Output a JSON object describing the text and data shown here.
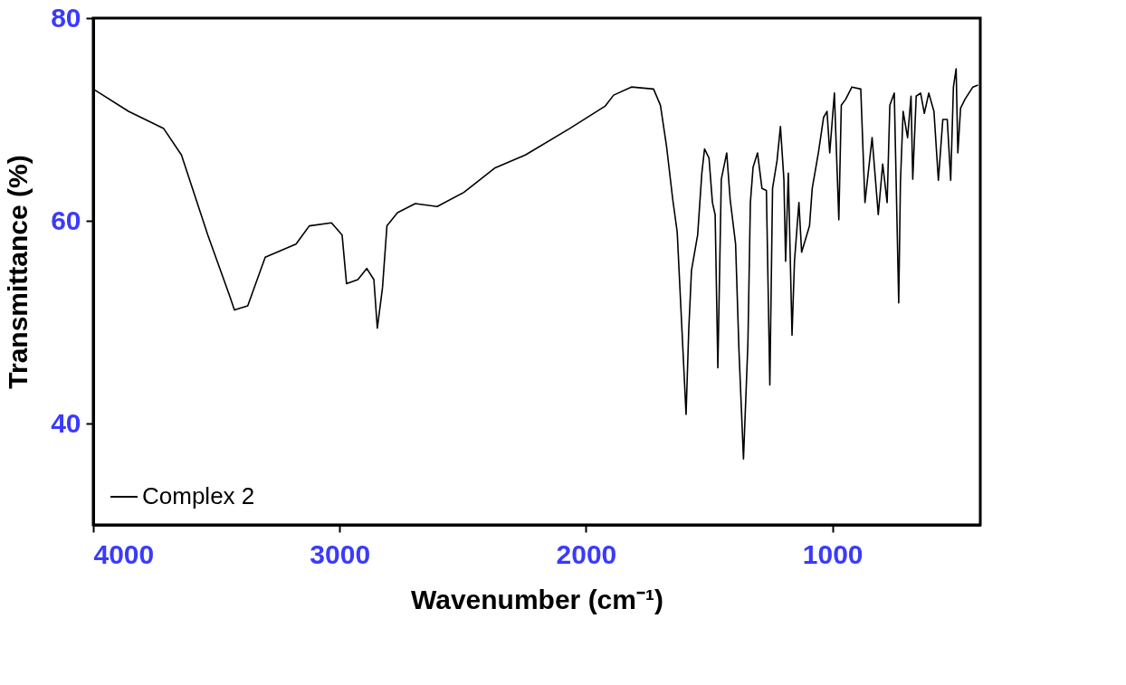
{
  "chart_data": {
    "type": "line",
    "xlabel": "Wavenumber (cm⁻¹)",
    "ylabel": "Transmittance (%)",
    "xlim": [
      4000,
      400
    ],
    "xticks": [
      4000,
      3000,
      2000,
      1000
    ],
    "ylim": [
      30,
      80
    ],
    "yticks": [
      40,
      60,
      80
    ],
    "grid": false,
    "legend": "bottom left",
    "marker": "none",
    "line_style": "solid",
    "x": [
      4000,
      3857,
      3714,
      3642,
      3535,
      3445,
      3427,
      3373,
      3302,
      3177,
      3123,
      3033,
      2990,
      2972,
      2926,
      2890,
      2861,
      2847,
      2826,
      2808,
      2765,
      2693,
      2604,
      2496,
      2371,
      2246,
      2067,
      1923,
      1888,
      1816,
      1726,
      1698,
      1673,
      1648,
      1630,
      1619,
      1594,
      1583,
      1572,
      1547,
      1530,
      1519,
      1501,
      1487,
      1476,
      1465,
      1451,
      1429,
      1415,
      1393,
      1379,
      1361,
      1343,
      1333,
      1322,
      1304,
      1286,
      1268,
      1254,
      1243,
      1225,
      1211,
      1197,
      1190,
      1179,
      1164,
      1154,
      1136,
      1125,
      1093,
      1082,
      1057,
      1036,
      1022,
      1011,
      992,
      974,
      964,
      946,
      921,
      885,
      868,
      839,
      814,
      796,
      778,
      767,
      749,
      731,
      724,
      713,
      695,
      681,
      674,
      660,
      642,
      627,
      609,
      588,
      570,
      552,
      534,
      520,
      509,
      498,
      491,
      480,
      462,
      430,
      409
    ],
    "series": [
      {
        "name": "Complex 2",
        "color": "#000000",
        "values": [
          73.0,
          70.8,
          69.1,
          66.5,
          58.6,
          52.5,
          51.2,
          51.6,
          56.4,
          57.7,
          59.5,
          59.8,
          58.6,
          53.8,
          54.2,
          55.3,
          54.2,
          49.4,
          53.4,
          59.5,
          60.8,
          61.7,
          61.4,
          62.8,
          65.2,
          66.5,
          69.1,
          71.3,
          72.4,
          73.2,
          73.0,
          71.4,
          67.3,
          62.1,
          58.9,
          53.4,
          40.9,
          49.3,
          55.1,
          58.6,
          64.7,
          67.1,
          66.2,
          61.8,
          60.6,
          45.5,
          64.1,
          66.7,
          62.1,
          57.7,
          47.0,
          36.5,
          47.9,
          61.8,
          65.3,
          66.7,
          63.2,
          63.0,
          43.8,
          63.2,
          65.9,
          69.3,
          64.1,
          56.0,
          64.7,
          48.7,
          56.0,
          61.8,
          56.9,
          59.5,
          63.2,
          66.7,
          70.2,
          70.8,
          66.7,
          72.6,
          60.1,
          71.4,
          72.0,
          73.2,
          73.0,
          61.8,
          68.2,
          60.6,
          65.6,
          61.8,
          71.4,
          72.6,
          51.9,
          63.8,
          70.8,
          68.2,
          72.3,
          64.1,
          72.3,
          72.6,
          70.6,
          72.6,
          70.8,
          64.0,
          70.0,
          70.0,
          64.0,
          73.2,
          75.0,
          66.7,
          71.1,
          72.0,
          73.2,
          73.4
        ]
      }
    ]
  }
}
